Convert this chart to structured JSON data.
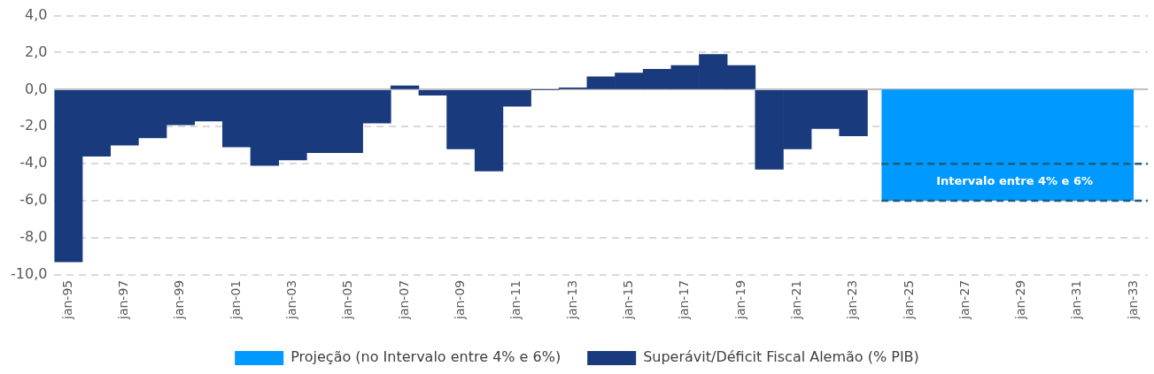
{
  "chart_data": {
    "type": "bar",
    "categories": [
      "jan-95",
      null,
      "jan-97",
      null,
      "jan-99",
      null,
      "jan-01",
      null,
      "jan-03",
      null,
      "jan-05",
      null,
      "jan-07",
      null,
      "jan-09",
      null,
      "jan-11",
      null,
      "jan-13",
      null,
      "jan-15",
      null,
      "jan-17",
      null,
      "jan-19",
      null,
      "jan-21",
      null,
      "jan-23",
      null,
      "jan-25",
      null,
      "jan-27",
      null,
      "jan-29",
      null,
      "jan-31",
      null,
      "jan-33"
    ],
    "series": [
      {
        "name": "Superávit/Déficit Fiscal Alemão (% PIB)",
        "color": "#1a3a7e",
        "values": [
          -9.3,
          -3.6,
          -3.0,
          -2.6,
          -1.9,
          -1.7,
          -3.1,
          -4.1,
          -3.8,
          -3.4,
          -3.4,
          -1.8,
          0.2,
          -0.3,
          -3.2,
          -4.4,
          -0.9,
          0.0,
          0.1,
          0.7,
          0.9,
          1.1,
          1.3,
          1.9,
          1.3,
          -4.3,
          -3.2,
          -2.1,
          -2.5,
          null,
          null,
          null,
          null,
          null,
          null,
          null,
          null,
          null,
          null
        ]
      },
      {
        "name": "Projeção (no Intervalo entre 4% e 6%)",
        "type": "area",
        "color": "#0099ff",
        "values": [
          null,
          null,
          null,
          null,
          null,
          null,
          null,
          null,
          null,
          null,
          null,
          null,
          null,
          null,
          null,
          null,
          null,
          null,
          null,
          null,
          null,
          null,
          null,
          null,
          null,
          null,
          null,
          null,
          null,
          -6,
          -6,
          -6,
          -6,
          -6,
          -6,
          -6,
          -6,
          -6,
          -6
        ]
      }
    ],
    "ylim": [
      -10,
      4
    ],
    "yticks": [
      {
        "value": -10,
        "label": "-10,0"
      },
      {
        "value": -8,
        "label": "-8,0"
      },
      {
        "value": -6,
        "label": "-6,0"
      },
      {
        "value": -4,
        "label": "-4,0"
      },
      {
        "value": -2,
        "label": "-2,0"
      },
      {
        "value": 0,
        "label": "0,0"
      },
      {
        "value": 2,
        "label": "2,0"
      },
      {
        "value": 4,
        "label": "4,0"
      }
    ],
    "ref_lines": [
      {
        "axis": "y",
        "value": -4,
        "color": "#1b5e7a",
        "line_style": "dashed"
      },
      {
        "axis": "y",
        "value": -6,
        "color": "#1b5e7a",
        "line_style": "dashed"
      }
    ],
    "annotations": [
      "Intervalo entre 4% e 6%"
    ],
    "grid": "y",
    "legend": "bottom"
  }
}
